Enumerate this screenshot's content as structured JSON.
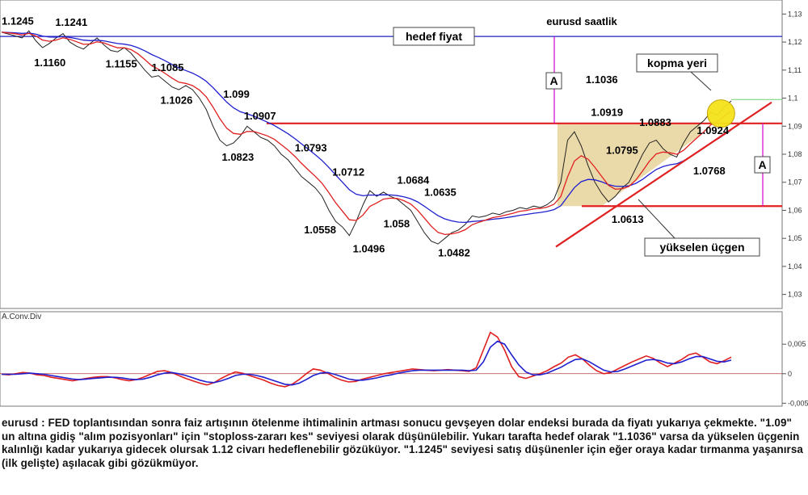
{
  "chart_data": {
    "type": "line",
    "title": "eurusd saatlik",
    "price_axis": {
      "ylim": [
        1.025,
        1.135
      ],
      "ticks": [
        "1,13",
        "1,12",
        "1,11",
        "1,1",
        "1,09",
        "1,08",
        "1,07",
        "1,06",
        "1,05",
        "1,04",
        "1,03"
      ],
      "tick_values": [
        1.13,
        1.12,
        1.11,
        1.1,
        1.09,
        1.08,
        1.07,
        1.06,
        1.05,
        1.04,
        1.03
      ]
    },
    "indicator": {
      "name": "A.Conv.Div",
      "ylim": [
        -0.0055,
        0.0105
      ],
      "ticks": [
        "0,005",
        "0",
        "-0,005"
      ],
      "tick_values": [
        0.005,
        0,
        -0.005
      ]
    },
    "price_series": [
      {
        "x": 0,
        "y": 1.1235
      },
      {
        "x": 3,
        "y": 1.1225
      },
      {
        "x": 6,
        "y": 1.1215
      },
      {
        "x": 8,
        "y": 1.124
      },
      {
        "x": 10,
        "y": 1.1205
      },
      {
        "x": 12,
        "y": 1.118
      },
      {
        "x": 14,
        "y": 1.1195
      },
      {
        "x": 16,
        "y": 1.1215
      },
      {
        "x": 18,
        "y": 1.123
      },
      {
        "x": 20,
        "y": 1.12
      },
      {
        "x": 22,
        "y": 1.1185
      },
      {
        "x": 24,
        "y": 1.1175
      },
      {
        "x": 26,
        "y": 1.1195
      },
      {
        "x": 28,
        "y": 1.1215
      },
      {
        "x": 30,
        "y": 1.119
      },
      {
        "x": 32,
        "y": 1.117
      },
      {
        "x": 34,
        "y": 1.1165
      },
      {
        "x": 36,
        "y": 1.118
      },
      {
        "x": 38,
        "y": 1.116
      },
      {
        "x": 40,
        "y": 1.113
      },
      {
        "x": 42,
        "y": 1.11
      },
      {
        "x": 44,
        "y": 1.1075
      },
      {
        "x": 46,
        "y": 1.108
      },
      {
        "x": 48,
        "y": 1.106
      },
      {
        "x": 50,
        "y": 1.104
      },
      {
        "x": 52,
        "y": 1.103
      },
      {
        "x": 54,
        "y": 1.1045
      },
      {
        "x": 56,
        "y": 1.103
      },
      {
        "x": 58,
        "y": 1.1
      },
      {
        "x": 60,
        "y": 1.096
      },
      {
        "x": 62,
        "y": 1.09
      },
      {
        "x": 64,
        "y": 1.085
      },
      {
        "x": 66,
        "y": 1.083
      },
      {
        "x": 68,
        "y": 1.084
      },
      {
        "x": 70,
        "y": 1.0865
      },
      {
        "x": 72,
        "y": 1.09
      },
      {
        "x": 74,
        "y": 1.088
      },
      {
        "x": 76,
        "y": 1.086
      },
      {
        "x": 78,
        "y": 1.085
      },
      {
        "x": 80,
        "y": 1.083
      },
      {
        "x": 82,
        "y": 1.08
      },
      {
        "x": 84,
        "y": 1.078
      },
      {
        "x": 86,
        "y": 1.075
      },
      {
        "x": 88,
        "y": 1.072
      },
      {
        "x": 90,
        "y": 1.07
      },
      {
        "x": 92,
        "y": 1.068
      },
      {
        "x": 94,
        "y": 1.065
      },
      {
        "x": 96,
        "y": 1.06
      },
      {
        "x": 98,
        "y": 1.056
      },
      {
        "x": 100,
        "y": 1.054
      },
      {
        "x": 102,
        "y": 1.051
      },
      {
        "x": 104,
        "y": 1.056
      },
      {
        "x": 106,
        "y": 1.062
      },
      {
        "x": 108,
        "y": 1.067
      },
      {
        "x": 110,
        "y": 1.065
      },
      {
        "x": 112,
        "y": 1.0665
      },
      {
        "x": 114,
        "y": 1.065
      },
      {
        "x": 116,
        "y": 1.064
      },
      {
        "x": 118,
        "y": 1.062
      },
      {
        "x": 120,
        "y": 1.06
      },
      {
        "x": 122,
        "y": 1.056
      },
      {
        "x": 124,
        "y": 1.052
      },
      {
        "x": 126,
        "y": 1.049
      },
      {
        "x": 128,
        "y": 1.048
      },
      {
        "x": 130,
        "y": 1.05
      },
      {
        "x": 132,
        "y": 1.052
      },
      {
        "x": 134,
        "y": 1.053
      },
      {
        "x": 136,
        "y": 1.055
      },
      {
        "x": 138,
        "y": 1.058
      },
      {
        "x": 140,
        "y": 1.0575
      },
      {
        "x": 142,
        "y": 1.058
      },
      {
        "x": 144,
        "y": 1.059
      },
      {
        "x": 146,
        "y": 1.0585
      },
      {
        "x": 148,
        "y": 1.0595
      },
      {
        "x": 150,
        "y": 1.06
      },
      {
        "x": 152,
        "y": 1.061
      },
      {
        "x": 154,
        "y": 1.0605
      },
      {
        "x": 156,
        "y": 1.0615
      },
      {
        "x": 158,
        "y": 1.061
      },
      {
        "x": 160,
        "y": 1.062
      },
      {
        "x": 162,
        "y": 1.064
      },
      {
        "x": 164,
        "y": 1.07
      },
      {
        "x": 166,
        "y": 1.085
      },
      {
        "x": 168,
        "y": 1.088
      },
      {
        "x": 170,
        "y": 1.083
      },
      {
        "x": 172,
        "y": 1.076
      },
      {
        "x": 174,
        "y": 1.07
      },
      {
        "x": 176,
        "y": 1.066
      },
      {
        "x": 178,
        "y": 1.063
      },
      {
        "x": 180,
        "y": 1.065
      },
      {
        "x": 182,
        "y": 1.068
      },
      {
        "x": 184,
        "y": 1.07
      },
      {
        "x": 186,
        "y": 1.075
      },
      {
        "x": 188,
        "y": 1.08
      },
      {
        "x": 190,
        "y": 1.084
      },
      {
        "x": 192,
        "y": 1.085
      },
      {
        "x": 194,
        "y": 1.082
      },
      {
        "x": 196,
        "y": 1.08
      },
      {
        "x": 198,
        "y": 1.079
      },
      {
        "x": 200,
        "y": 1.084
      },
      {
        "x": 202,
        "y": 1.088
      },
      {
        "x": 204,
        "y": 1.09
      },
      {
        "x": 206,
        "y": 1.092
      },
      {
        "x": 208,
        "y": 1.095
      },
      {
        "x": 210,
        "y": 1.094
      },
      {
        "x": 212,
        "y": 1.097
      },
      {
        "x": 214,
        "y": 1.099
      }
    ],
    "macd": [
      -0.0001,
      -0.0002,
      0.0,
      0.0002,
      0.0001,
      -0.0002,
      -0.0003,
      -0.0006,
      -0.0008,
      -0.001,
      -0.0012,
      -0.001,
      -0.0008,
      -0.0006,
      -0.0005,
      -0.0005,
      -0.0007,
      -0.001,
      -0.0012,
      -0.001,
      -0.0006,
      -0.0001,
      0.0004,
      0.0005,
      0.0002,
      -0.0003,
      -0.0008,
      -0.0012,
      -0.0016,
      -0.0019,
      -0.0015,
      -0.0008,
      -0.0002,
      0.0003,
      0.0001,
      -0.0003,
      -0.0007,
      -0.0011,
      -0.0016,
      -0.002,
      -0.0022,
      -0.0018,
      -0.001,
      0.0,
      0.0008,
      0.0006,
      0.0001,
      -0.0006,
      -0.0011,
      -0.0014,
      -0.0013,
      -0.0009,
      -0.0006,
      -0.0003,
      0.0,
      0.0002,
      0.0004,
      0.0006,
      0.0008,
      0.0007,
      0.0006,
      0.0005,
      0.0006,
      0.0007,
      0.0006,
      0.0005,
      0.0004,
      0.001,
      0.004,
      0.007,
      0.0062,
      0.004,
      0.0012,
      -0.0005,
      -0.0008,
      -0.0004,
      0.0,
      0.0005,
      0.0012,
      0.0018,
      0.0028,
      0.0032,
      0.0025,
      0.0014,
      0.0005,
      0.0,
      0.0002,
      0.0008,
      0.0014,
      0.002,
      0.0025,
      0.003,
      0.0026,
      0.0018,
      0.0012,
      0.0018,
      0.0024,
      0.0032,
      0.0035,
      0.0028,
      0.002,
      0.0017,
      0.0022,
      0.0028
    ],
    "signal": [
      -0.0001,
      -0.0001,
      -0.0001,
      0.0,
      0.0001,
      0.0,
      -0.0001,
      -0.0003,
      -0.0005,
      -0.0007,
      -0.0009,
      -0.001,
      -0.0009,
      -0.0008,
      -0.0007,
      -0.0006,
      -0.0006,
      -0.0007,
      -0.0009,
      -0.001,
      -0.0009,
      -0.0006,
      -0.0002,
      0.0001,
      0.0002,
      0.0,
      -0.0003,
      -0.0007,
      -0.0011,
      -0.0014,
      -0.0015,
      -0.0012,
      -0.0008,
      -0.0003,
      -0.0001,
      -0.0001,
      -0.0003,
      -0.0006,
      -0.001,
      -0.0014,
      -0.0018,
      -0.0019,
      -0.0016,
      -0.001,
      -0.0003,
      0.0001,
      0.0002,
      -0.0001,
      -0.0005,
      -0.0009,
      -0.0011,
      -0.0011,
      -0.0009,
      -0.0007,
      -0.0004,
      -0.0002,
      0.0001,
      0.0003,
      0.0005,
      0.0006,
      0.0006,
      0.0006,
      0.0006,
      0.0006,
      0.0006,
      0.0006,
      0.0005,
      0.0006,
      0.002,
      0.0045,
      0.0055,
      0.005,
      0.0032,
      0.0015,
      0.0003,
      -0.0002,
      -0.0002,
      0.0001,
      0.0006,
      0.0011,
      0.0018,
      0.0024,
      0.0025,
      0.002,
      0.0013,
      0.0006,
      0.0003,
      0.0004,
      0.0008,
      0.0013,
      0.0018,
      0.0023,
      0.0024,
      0.0022,
      0.0018,
      0.0017,
      0.002,
      0.0025,
      0.0029,
      0.0029,
      0.0025,
      0.0021,
      0.002,
      0.0023
    ],
    "x_range": [
      0,
      214
    ],
    "horizontal_levels": [
      {
        "name": "hedef",
        "y": 1.122,
        "color": "#2020c0"
      },
      {
        "name": "direnc",
        "y": 1.091,
        "color": "#e02020"
      },
      {
        "name": "destek",
        "y": 1.0615,
        "color": "#e02020"
      }
    ],
    "price_labels": [
      {
        "text": "1.1245",
        "x": 0,
        "y": 1.1245
      },
      {
        "text": "1.1241",
        "x": 11,
        "y": 1.1241
      },
      {
        "text": "1.1160",
        "x": 10,
        "y": 1.116
      },
      {
        "text": "1.1155",
        "x": 30,
        "y": 1.1155
      },
      {
        "text": "1.1085",
        "x": 44,
        "y": 1.1085
      },
      {
        "text": "1.099",
        "x": 65,
        "y": 1.099
      },
      {
        "text": "1.1026",
        "x": 48,
        "y": 1.1026
      },
      {
        "text": "1.0907",
        "x": 72,
        "y": 1.0907
      },
      {
        "text": "1.0793",
        "x": 86,
        "y": 1.0793
      },
      {
        "text": "1.0823",
        "x": 66,
        "y": 1.0823
      },
      {
        "text": "1.0712",
        "x": 97,
        "y": 1.0712
      },
      {
        "text": "1.0684",
        "x": 116,
        "y": 1.0684
      },
      {
        "text": "1.0635",
        "x": 123,
        "y": 1.0635
      },
      {
        "text": "1.0558",
        "x": 92,
        "y": 1.0558
      },
      {
        "text": "1.058",
        "x": 112,
        "y": 1.058
      },
      {
        "text": "1.0496",
        "x": 103,
        "y": 1.0496
      },
      {
        "text": "1.0482",
        "x": 128,
        "y": 1.0482
      },
      {
        "text": "1.1036",
        "x": 168,
        "y": 1.1036
      },
      {
        "text": "1.0919",
        "x": 170,
        "y": 1.0919
      },
      {
        "text": "1.0883",
        "x": 187,
        "y": 1.0883
      },
      {
        "text": "1.0795",
        "x": 173,
        "y": 1.0795
      },
      {
        "text": "1.0924",
        "x": 202,
        "y": 1.0924
      },
      {
        "text": "1.0768",
        "x": 200,
        "y": 1.0768
      },
      {
        "text": "1.0613",
        "x": 177,
        "y": 1.0613
      }
    ],
    "annotations": {
      "target": "hedef fiyat",
      "breakout": "kopma yeri",
      "pattern": "yükselen üçgen",
      "measure": "A"
    }
  },
  "caption": "eurusd : FED toplantısından sonra faiz artışının ötelenme ihtimalinin artması sonucu gevşeyen dolar endeksi burada da fiyatı yukarıya çekmekte. \"1.09\" un altına gidiş \"alım pozisyonları\" için \"stoploss-zararı kes\" seviyesi olarak düşünülebilir. Yukarı tarafta hedef olarak \"1.1036\" varsa da yükselen üçgenin kalınlığı kadar yukarıya gidecek olursak 1.12 civarı hedeflenebilir gözüküyor. \"1.1245\" seviyesi satış düşünenler için eğer oraya kadar tırmanma yaşanırsa (ilk gelişte) aşılacak gibi gözükmüyor.",
  "colors": {
    "ema_fast": "#e02020",
    "ema_slow": "#2020d0",
    "price": "#222222",
    "macd": "#e02020",
    "signal": "#2020d0",
    "triangle_fill": "#e8d49a",
    "circle": "#f5e21a",
    "aline": "#d000d0"
  }
}
